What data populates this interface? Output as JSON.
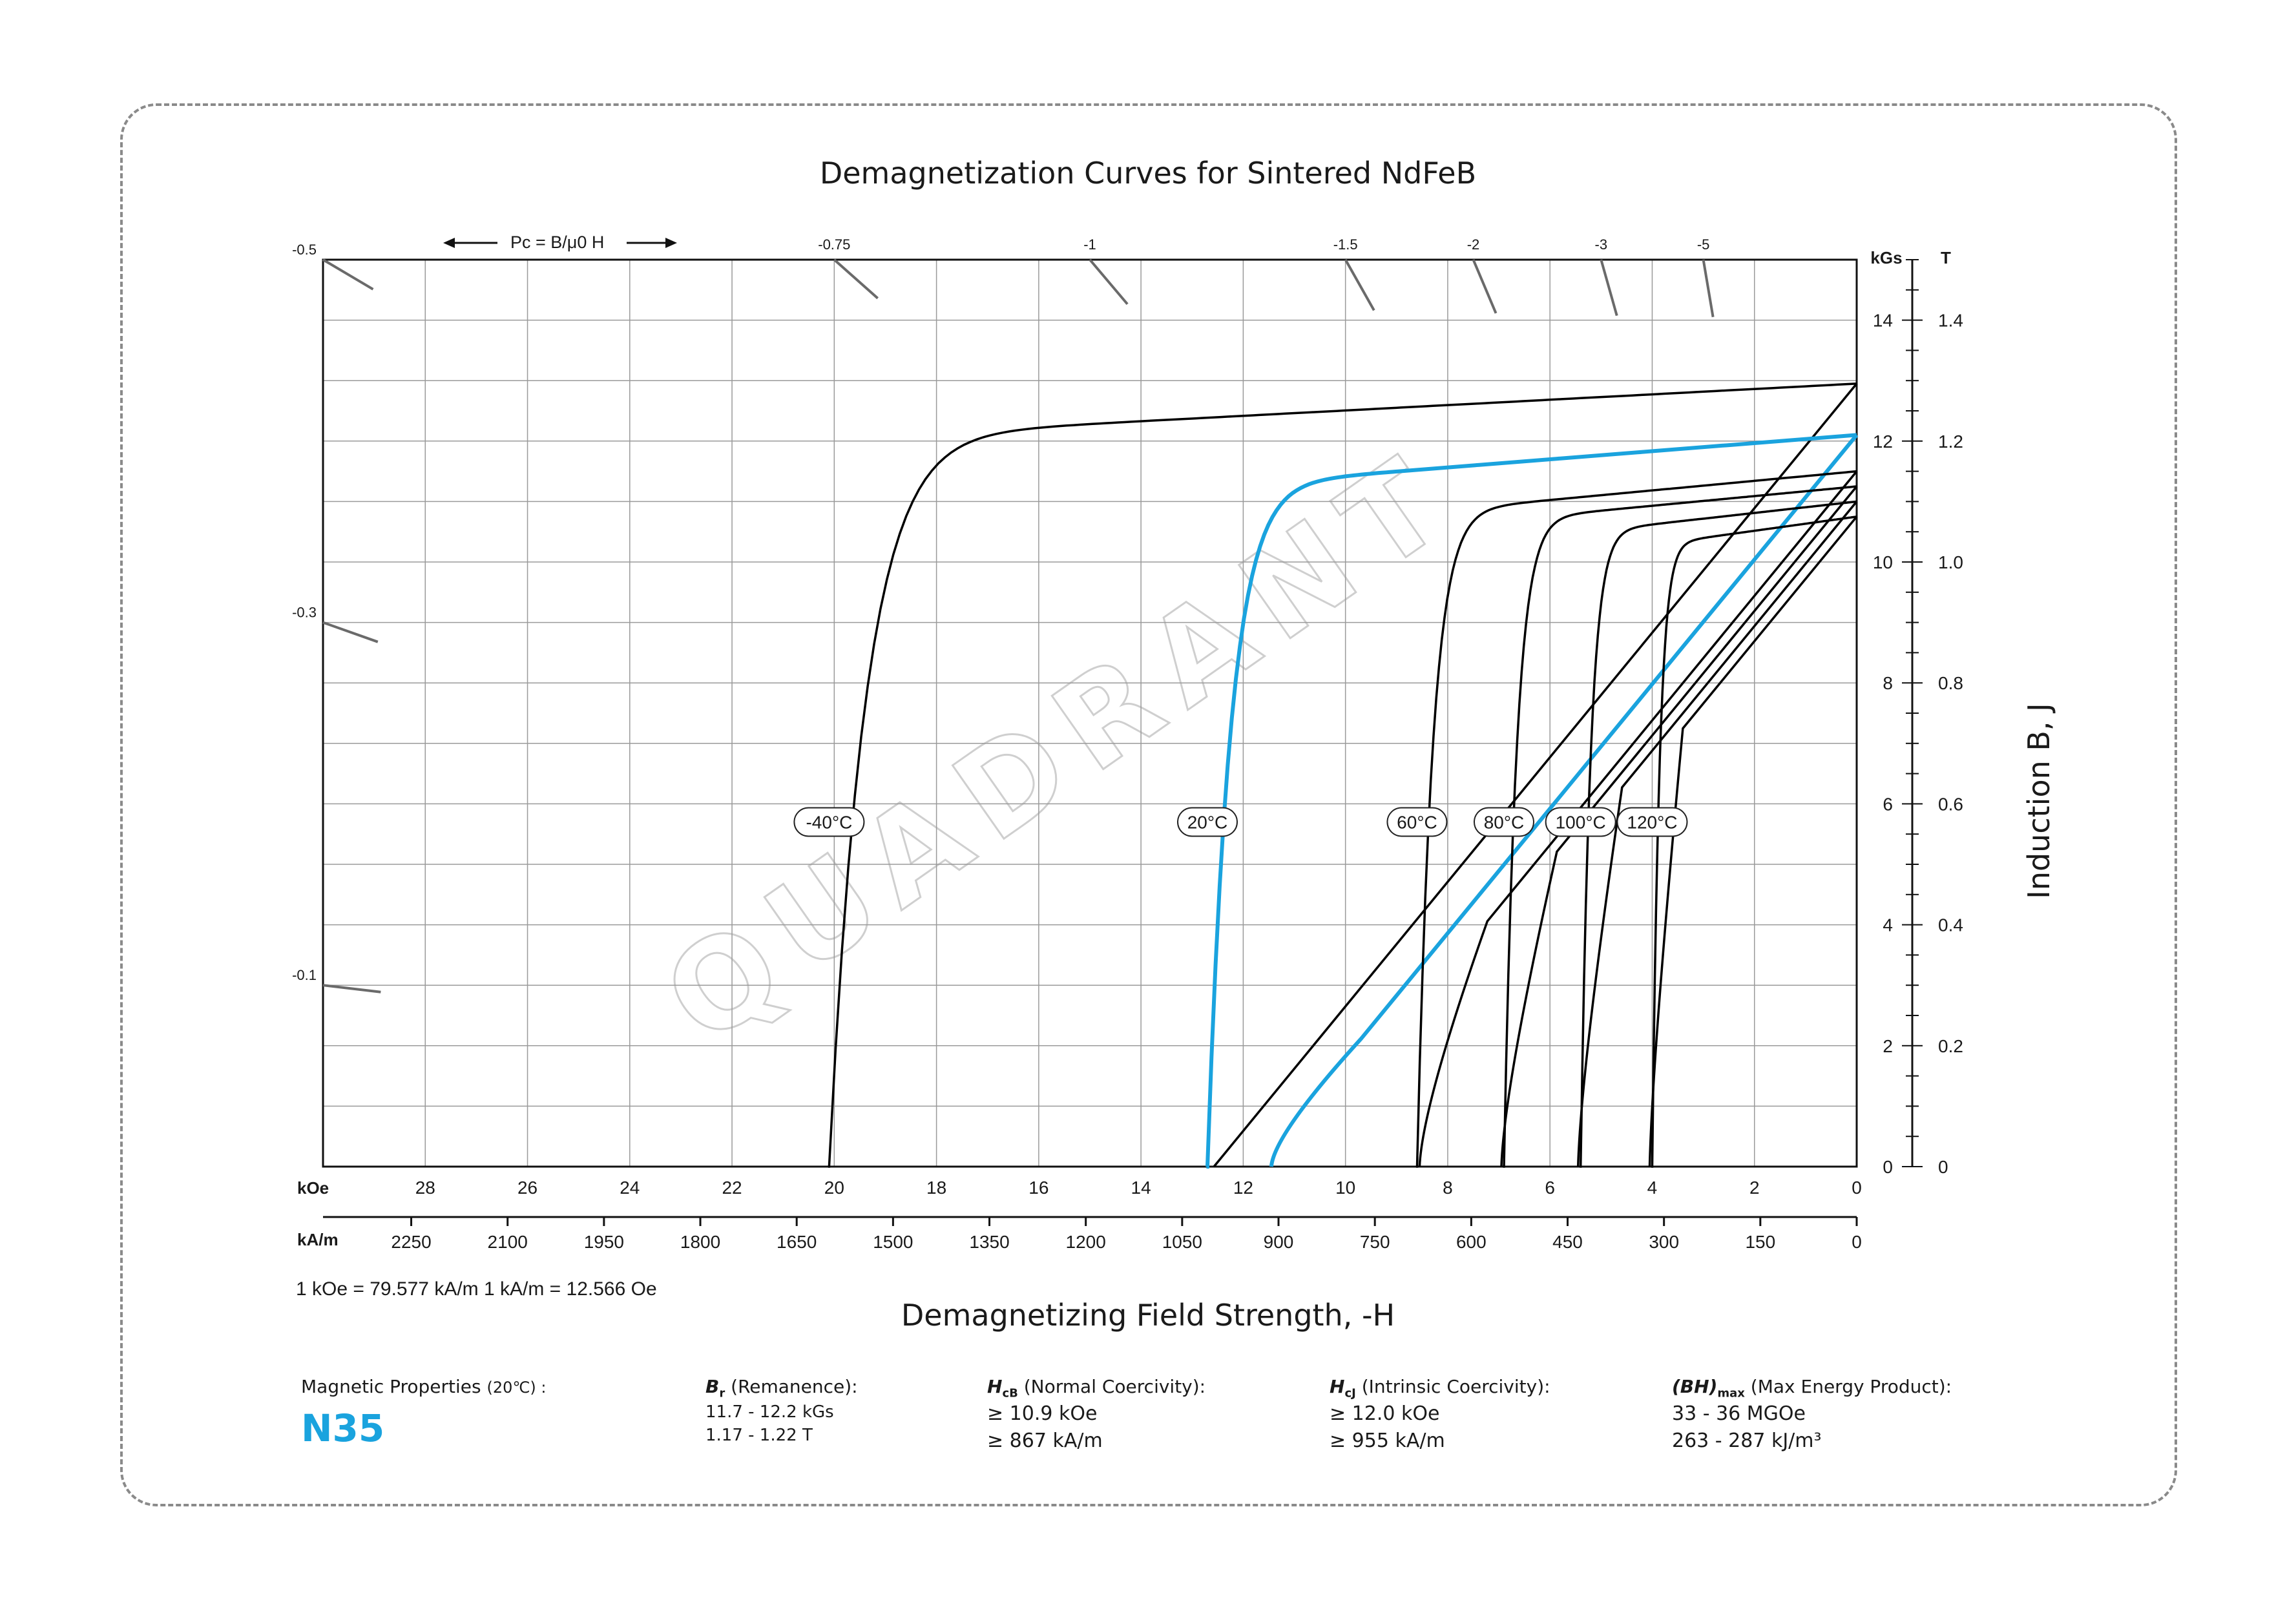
{
  "chart_data": {
    "type": "line",
    "title": "Demagnetization Curves for Sintered NdFeB",
    "xlabel": "Demagnetizing Field Strength, -H",
    "ylabel": "Induction  B, J",
    "x_unit_primary": "kOe",
    "x_unit_secondary": "kA/m",
    "y_unit_left": "kGs",
    "y_unit_right": "T",
    "xlim": [
      30,
      0
    ],
    "ylim": [
      0,
      15
    ],
    "x_ticks_koe": [
      "28",
      "26",
      "24",
      "22",
      "20",
      "18",
      "16",
      "14",
      "12",
      "10",
      "8",
      "6",
      "4",
      "2",
      "0"
    ],
    "x_ticks_kam": [
      "2250",
      "2100",
      "1950",
      "1800",
      "1650",
      "1500",
      "1350",
      "1200",
      "1050",
      "900",
      "750",
      "600",
      "450",
      "300",
      "150",
      "0"
    ],
    "y_ticks_kgs": [
      "0",
      "2",
      "4",
      "6",
      "8",
      "10",
      "12",
      "14"
    ],
    "y_ticks_t": [
      "0",
      "0.2",
      "0.4",
      "0.6",
      "0.8",
      "1.0",
      "1.2",
      "1.4"
    ],
    "grid": true,
    "conversion_note": "1 kOe = 79.577 kA/m   1 kA/m = 12.566 Oe",
    "pc_header": "Pc = B/μ0 H",
    "pc_lines": [
      {
        "label": "-0.5",
        "slope": 0.5
      },
      {
        "label": "-0.3",
        "slope": 0.3
      },
      {
        "label": "-0.1",
        "slope": 0.1
      },
      {
        "label": "-0.75",
        "slope": 0.75
      },
      {
        "label": "-1",
        "slope": 1
      },
      {
        "label": "-1.5",
        "slope": 1.5
      },
      {
        "label": "-2",
        "slope": 2
      },
      {
        "label": "-3",
        "slope": 3
      },
      {
        "label": "-5",
        "slope": 5
      }
    ],
    "series": [
      {
        "name": "-40°C",
        "highlight": false,
        "Br": 12.95,
        "HcJ": 20.1,
        "knee_j": 11.9,
        "B_line_h0": 12.95,
        "Hcb_b": null
      },
      {
        "name": "20°C",
        "highlight": true,
        "Br": 12.1,
        "HcJ": 12.7,
        "knee_j": 11.1,
        "B_line_h0": 12.1,
        "Hcb_b": 11.4
      },
      {
        "name": "60°C",
        "highlight": false,
        "Br": 11.5,
        "HcJ": 8.6,
        "knee_j": 10.7,
        "B_line_h0": 11.5,
        "Hcb_b": 8.5
      },
      {
        "name": "80°C",
        "highlight": false,
        "Br": 11.25,
        "HcJ": 6.9,
        "knee_j": 10.6,
        "B_line_h0": 11.25,
        "Hcb_b": 6.9
      },
      {
        "name": "100°C",
        "highlight": false,
        "Br": 11.0,
        "HcJ": 5.4,
        "knee_j": 10.4,
        "B_line_h0": 11.0,
        "Hcb_b": 5.4
      },
      {
        "name": "120°C",
        "highlight": false,
        "Br": 10.75,
        "HcJ": 4.0,
        "knee_j": 10.2,
        "B_line_h0": 10.75,
        "Hcb_b": 4.0
      }
    ],
    "colors": {
      "highlight": "#1aa3de",
      "curve": "#000000",
      "grid": "#9a9a9a",
      "pc": "#6a6a6a"
    },
    "watermark": "QUADRANT"
  },
  "properties": {
    "heading": "Magnetic Properties",
    "heading_temp": "(20℃) :",
    "grade": "N35",
    "br": {
      "sym": "B",
      "sub": "r",
      "desc": "(Remanence):",
      "v1": "11.7 - 12.2 kGs",
      "v2": "1.17 - 1.22 T"
    },
    "hcb": {
      "sym": "H",
      "sub": "cB",
      "desc": "(Normal Coercivity):",
      "v1": "≥ 10.9 kOe",
      "v2": "≥ 867 kA/m"
    },
    "hcj": {
      "sym": "H",
      "sub": "cJ",
      "desc": "(Intrinsic Coercivity):",
      "v1": "≥ 12.0 kOe",
      "v2": "≥ 955 kA/m"
    },
    "bh": {
      "sym": "(BH)",
      "sub": "max",
      "desc": "(Max Energy Product):",
      "v1": "33 - 36 MGOe",
      "v2": "263 - 287 kJ/m³"
    }
  }
}
